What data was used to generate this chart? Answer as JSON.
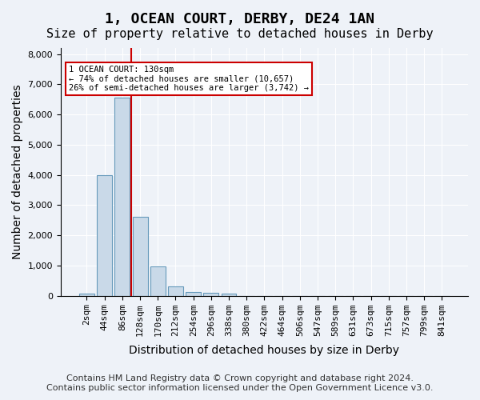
{
  "title": "1, OCEAN COURT, DERBY, DE24 1AN",
  "subtitle": "Size of property relative to detached houses in Derby",
  "xlabel": "Distribution of detached houses by size in Derby",
  "ylabel": "Number of detached properties",
  "categories": [
    "2sqm",
    "44sqm",
    "86sqm",
    "128sqm",
    "170sqm",
    "212sqm",
    "254sqm",
    "296sqm",
    "338sqm",
    "380sqm",
    "422sqm",
    "464sqm",
    "506sqm",
    "547sqm",
    "589sqm",
    "631sqm",
    "673sqm",
    "715sqm",
    "757sqm",
    "799sqm",
    "841sqm"
  ],
  "values": [
    70,
    3980,
    6560,
    2620,
    960,
    310,
    130,
    100,
    70,
    0,
    0,
    0,
    0,
    0,
    0,
    0,
    0,
    0,
    0,
    0,
    0
  ],
  "bar_color": "#c9d9e8",
  "bar_edge_color": "#6699bb",
  "vline_x": 3,
  "vline_color": "#cc0000",
  "annotation_title": "1 OCEAN COURT: 130sqm",
  "annotation_line1": "← 74% of detached houses are smaller (10,657)",
  "annotation_line2": "26% of semi-detached houses are larger (3,742) →",
  "annotation_box_color": "#cc0000",
  "ylim": [
    0,
    8200
  ],
  "yticks": [
    0,
    1000,
    2000,
    3000,
    4000,
    5000,
    6000,
    7000,
    8000
  ],
  "footer_line1": "Contains HM Land Registry data © Crown copyright and database right 2024.",
  "footer_line2": "Contains public sector information licensed under the Open Government Licence v3.0.",
  "background_color": "#eef2f8",
  "plot_background_color": "#eef2f8",
  "grid_color": "#ffffff",
  "title_fontsize": 13,
  "subtitle_fontsize": 11,
  "axis_label_fontsize": 10,
  "tick_fontsize": 8,
  "footer_fontsize": 8
}
